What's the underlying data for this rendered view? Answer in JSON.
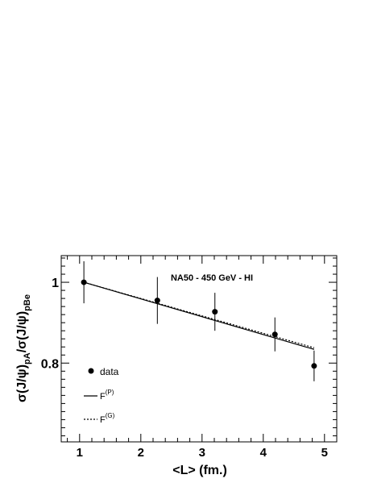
{
  "chart_data": {
    "type": "scatter",
    "title": "NA50 - 450 GeV - HI",
    "xlabel": "<L> (fm.)",
    "ylabel": {
      "p1": "σ(J/ψ)",
      "s1": "pA",
      "p2": "/σ(J/ψ)",
      "s2": "pBe"
    },
    "xlim": [
      0.7,
      5.2
    ],
    "ylim": [
      0.605,
      1.066
    ],
    "x_ticks": [
      1,
      2,
      3,
      4,
      5
    ],
    "x_tick_labels": [
      "1",
      "2",
      "3",
      "4",
      "5"
    ],
    "y_ticks": [
      0.8,
      1.0
    ],
    "y_tick_labels": [
      "0.8",
      "1"
    ],
    "grid": false,
    "legend_position": "bottom-left",
    "series": [
      {
        "name": "data",
        "kind": "points-with-errors",
        "marker": "filled-circle",
        "x": [
          1.07,
          2.27,
          3.21,
          4.19,
          4.83
        ],
        "y": [
          1.0,
          0.955,
          0.927,
          0.871,
          0.793
        ],
        "yerr": [
          0.052,
          0.058,
          0.047,
          0.042,
          0.038
        ]
      },
      {
        "name": "F",
        "sup": "(P)",
        "kind": "line",
        "style": "solid",
        "x": [
          1.07,
          4.83
        ],
        "y": [
          1.0,
          0.834
        ]
      },
      {
        "name": "F",
        "sup": "(G)",
        "kind": "line",
        "style": "dashed",
        "x": [
          1.07,
          4.83
        ],
        "y": [
          1.0,
          0.838
        ]
      }
    ]
  }
}
